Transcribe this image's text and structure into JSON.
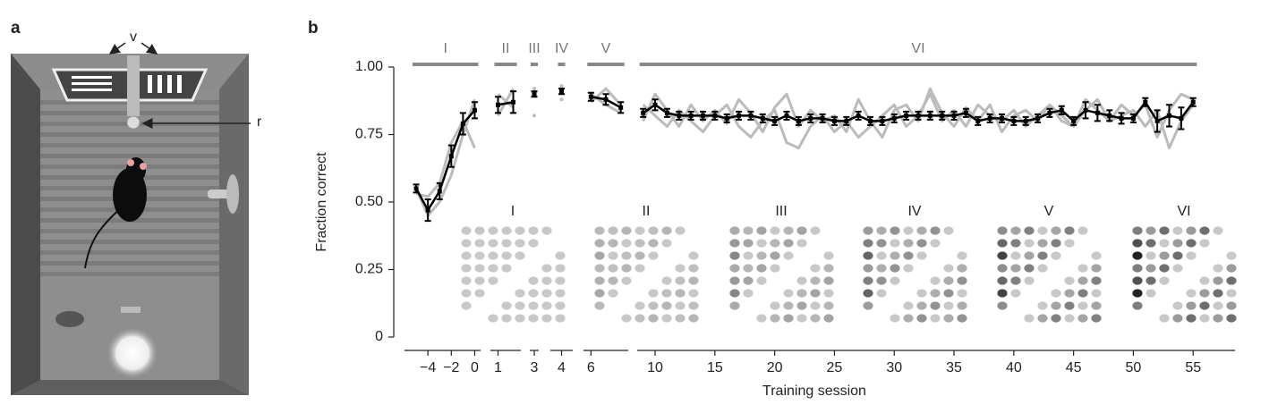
{
  "panel_a": {
    "label": "a",
    "annotations": [
      "v",
      "r"
    ]
  },
  "chart_data": {
    "type": "line",
    "panel_label": "b",
    "x_label": "Training session",
    "y_label": "Fraction correct",
    "ylim": [
      0,
      1
    ],
    "yticks": [
      0,
      0.25,
      {
        "value": 0.5,
        "label": "0.50"
      },
      0.75,
      {
        "value": 1,
        "label": "1.00"
      }
    ],
    "mean_color": "#000000",
    "individual_color": "#bbbbbb",
    "insets": [
      "I",
      "II",
      "III",
      "IV",
      "V",
      "VI"
    ],
    "segments": [
      {
        "stage": "I",
        "xlim": [
          -6,
          0.5
        ],
        "xticks": [
          {
            "value": -4,
            "label": "−4"
          },
          {
            "value": -2,
            "label": "−2"
          },
          0
        ],
        "x": [
          -5,
          -4,
          -3,
          -2,
          -1,
          0
        ],
        "mean": [
          0.55,
          0.47,
          0.54,
          0.67,
          0.79,
          0.84
        ],
        "error": [
          0.015,
          0.04,
          0.03,
          0.04,
          0.04,
          0.03
        ],
        "individual": [
          [
            0.55,
            0.45,
            0.5,
            0.6,
            0.75,
            0.88
          ],
          [
            0.53,
            0.52,
            0.57,
            0.72,
            0.8,
            0.7
          ]
        ]
      },
      {
        "stage": "II",
        "xlim": [
          0.5,
          2.5
        ],
        "xticks": [
          1
        ],
        "x": [
          1,
          2
        ],
        "mean": [
          0.86,
          0.87
        ],
        "error": [
          0.03,
          0.04
        ],
        "individual": [
          [
            0.9,
            0.85
          ],
          [
            0.82,
            0.92
          ]
        ]
      },
      {
        "stage": "III",
        "xlim": [
          2.5,
          3.5
        ],
        "xticks": [
          3
        ],
        "x": [
          3
        ],
        "mean": [
          0.9
        ],
        "error": [
          0.01
        ],
        "individual": [
          [
            0.92
          ],
          [
            0.82
          ]
        ]
      },
      {
        "stage": "IV",
        "xlim": [
          3.5,
          4.5
        ],
        "xticks": [
          4
        ],
        "x": [
          4
        ],
        "mean": [
          0.91
        ],
        "error": [
          0.01
        ],
        "individual": [
          [
            0.93
          ],
          [
            0.88
          ]
        ]
      },
      {
        "stage": "V",
        "xlim": [
          5.5,
          8.5
        ],
        "xticks": [
          6
        ],
        "x": [
          6,
          7,
          8
        ],
        "mean": [
          0.89,
          0.88,
          0.85
        ],
        "error": [
          0.015,
          0.02,
          0.02
        ],
        "individual": [
          [
            0.9,
            0.86,
            0.83
          ],
          [
            0.87,
            0.92,
            0.86
          ]
        ]
      },
      {
        "stage": "VI",
        "xlim": [
          8.5,
          58.5
        ],
        "xticks": [
          10,
          15,
          20,
          25,
          30,
          35,
          40,
          45,
          50,
          55
        ],
        "x": [
          9,
          10,
          11,
          12,
          13,
          14,
          15,
          16,
          17,
          18,
          19,
          20,
          21,
          22,
          23,
          24,
          25,
          26,
          27,
          28,
          29,
          30,
          31,
          32,
          33,
          34,
          35,
          36,
          37,
          38,
          39,
          40,
          41,
          42,
          43,
          44,
          45,
          46,
          47,
          48,
          49,
          50,
          51,
          52,
          53,
          54,
          55
        ],
        "mean": [
          0.83,
          0.86,
          0.83,
          0.82,
          0.82,
          0.82,
          0.82,
          0.81,
          0.82,
          0.82,
          0.81,
          0.8,
          0.82,
          0.8,
          0.81,
          0.81,
          0.8,
          0.8,
          0.82,
          0.8,
          0.8,
          0.81,
          0.82,
          0.82,
          0.82,
          0.82,
          0.82,
          0.83,
          0.8,
          0.81,
          0.81,
          0.8,
          0.8,
          0.81,
          0.83,
          0.84,
          0.8,
          0.84,
          0.83,
          0.82,
          0.81,
          0.81,
          0.87,
          0.8,
          0.82,
          0.81,
          0.87
        ],
        "error": [
          0.015,
          0.02,
          0.015,
          0.015,
          0.015,
          0.015,
          0.015,
          0.015,
          0.015,
          0.015,
          0.015,
          0.015,
          0.015,
          0.015,
          0.015,
          0.015,
          0.015,
          0.015,
          0.015,
          0.015,
          0.015,
          0.015,
          0.015,
          0.015,
          0.015,
          0.015,
          0.015,
          0.015,
          0.015,
          0.015,
          0.015,
          0.015,
          0.015,
          0.015,
          0.015,
          0.015,
          0.015,
          0.03,
          0.03,
          0.02,
          0.02,
          0.015,
          0.015,
          0.04,
          0.04,
          0.04,
          0.015
        ],
        "individual": [
          [
            0.8,
            0.9,
            0.84,
            0.78,
            0.86,
            0.8,
            0.84,
            0.79,
            0.88,
            0.83,
            0.76,
            0.85,
            0.9,
            0.78,
            0.84,
            0.8,
            0.82,
            0.76,
            0.88,
            0.8,
            0.74,
            0.84,
            0.86,
            0.8,
            0.92,
            0.83,
            0.78,
            0.85,
            0.8,
            0.86,
            0.76,
            0.82,
            0.84,
            0.8,
            0.86,
            0.82,
            0.78,
            0.88,
            0.84,
            0.8,
            0.86,
            0.82,
            0.86,
            0.74,
            0.84,
            0.9,
            0.88
          ],
          [
            0.86,
            0.82,
            0.78,
            0.84,
            0.8,
            0.76,
            0.82,
            0.86,
            0.78,
            0.74,
            0.8,
            0.84,
            0.72,
            0.7,
            0.78,
            0.82,
            0.76,
            0.8,
            0.74,
            0.78,
            0.82,
            0.86,
            0.78,
            0.82,
            0.9,
            0.8,
            0.84,
            0.78,
            0.86,
            0.82,
            0.8,
            0.84,
            0.78,
            0.82,
            0.86,
            0.8,
            0.78,
            0.84,
            0.88,
            0.8,
            0.82,
            0.84,
            0.78,
            0.84,
            0.7,
            0.8,
            0.86
          ]
        ]
      }
    ]
  }
}
